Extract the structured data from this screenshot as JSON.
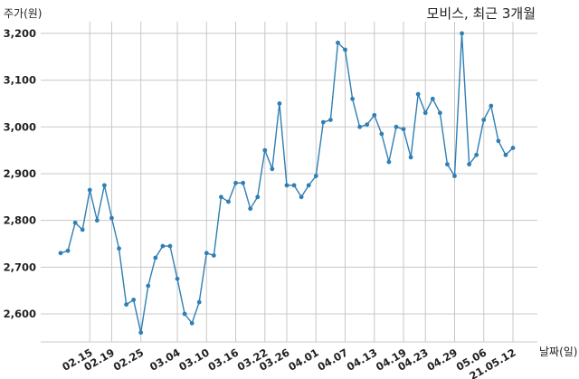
{
  "chart_data": {
    "type": "line",
    "title": "모비스, 최근 3개월",
    "xlabel": "날짜(일)",
    "ylabel": "주가(원)",
    "ylim": [
      2540,
      3225
    ],
    "yticks": [
      2600,
      2700,
      2800,
      2900,
      3000,
      3100,
      3200
    ],
    "ytick_labels": [
      "2,600",
      "2,700",
      "2,800",
      "2,900",
      "3,000",
      "3,100",
      "3,200"
    ],
    "xtick_labels": [
      "02.15",
      "02.19",
      "02.25",
      "03.04",
      "03.10",
      "03.16",
      "03.22",
      "03.26",
      "04.01",
      "04.07",
      "04.13",
      "04.19",
      "04.23",
      "04.29",
      "05.06",
      "21.05.12"
    ],
    "xtick_index": [
      4,
      7,
      11,
      16,
      20,
      24,
      28,
      31,
      35,
      39,
      43,
      47,
      50,
      54,
      58,
      62
    ],
    "grid": true,
    "color": "#2f7fb4",
    "series": [
      {
        "values": [
          2730,
          2735,
          2795,
          2780,
          2865,
          2800,
          2875,
          2805,
          2740,
          2620,
          2630,
          2560,
          2660,
          2720,
          2745,
          2745,
          2675,
          2600,
          2580,
          2625,
          2730,
          2725,
          2850,
          2840,
          2880,
          2880,
          2825,
          2850,
          2950,
          2910,
          3050,
          2875,
          2875,
          2850,
          2875,
          2895,
          3010,
          3015,
          3180,
          3165,
          3060,
          3000,
          3005,
          3025,
          2985,
          2925,
          3000,
          2995,
          2935,
          3070,
          3030,
          3060,
          3030,
          2920,
          2895,
          3200,
          2920,
          2940,
          3015,
          3045,
          2970,
          2940,
          2955
        ]
      }
    ]
  }
}
